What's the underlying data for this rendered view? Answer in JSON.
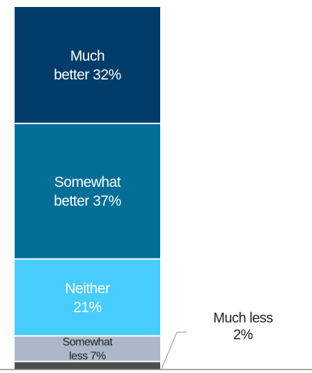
{
  "chart_data": {
    "type": "bar",
    "stacked": true,
    "orientation": "vertical",
    "segments": [
      {
        "line1": "Much",
        "line2": "better 32%",
        "value": 32,
        "color": "#023c6a",
        "text_color": "#ffffff"
      },
      {
        "line1": "Somewhat",
        "line2": "better 37%",
        "value": 37,
        "color": "#036f98",
        "text_color": "#ffffff"
      },
      {
        "line1": "Neither",
        "line2": "21%",
        "value": 21,
        "color": "#47cdfc",
        "text_color": "#ffffff"
      },
      {
        "line1": "Somewhat",
        "line2": "less 7%",
        "value": 7,
        "color": "#aab8ca",
        "text_color": "#222222"
      },
      {
        "line1": "Much less",
        "line2": "2%",
        "value": 2,
        "color": "#4d4d4d",
        "text_color": "#222222",
        "label_outside": true
      }
    ],
    "baseline_color": "#8c8c8c",
    "leader_line_color": "#a6a6a6"
  }
}
